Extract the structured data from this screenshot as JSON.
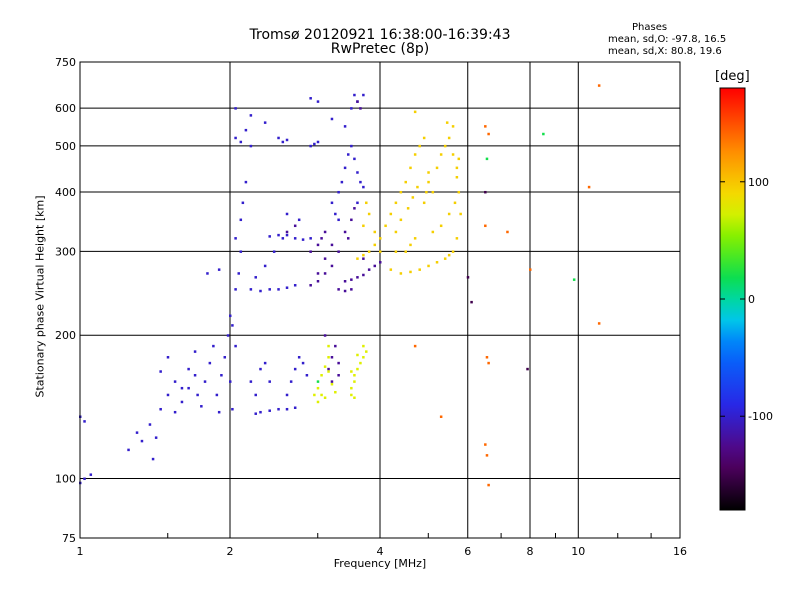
{
  "title": {
    "line1": "Tromsø 20120921 16:38:00-16:39:43",
    "line2": "RwPretec (8p)"
  },
  "stats": {
    "heading": "Phases",
    "o_line": "mean, sd,O: -97.8, 16.5",
    "x_line": "mean, sd,X:  80.8, 19.6"
  },
  "chart_data": {
    "type": "scatter",
    "title": "Tromsø 20120921 16:38:00-16:39:43",
    "subtitle": "RwPretec (8p)",
    "xlabel": "Frequency [MHz]",
    "ylabel": "Stationary phase Virtual Height [km]",
    "xscale": "log",
    "yscale": "log",
    "xlim": [
      1,
      16
    ],
    "ylim": [
      75,
      750
    ],
    "xticks": [
      1,
      2,
      4,
      6,
      8,
      10,
      16
    ],
    "yticks": [
      75,
      100,
      200,
      300,
      400,
      500,
      600,
      750
    ],
    "grid": true,
    "colorbar": {
      "label": "[deg]",
      "range": [
        -180,
        180
      ],
      "ticks": [
        -100,
        0,
        100
      ],
      "colormap": "rainbow (black-purple-blue-cyan-green-yellow-orange-red)"
    },
    "series": [
      {
        "phase_deg": -100,
        "points": [
          [
            1.0,
            98
          ],
          [
            1.02,
            100
          ],
          [
            1.05,
            102
          ],
          [
            1.0,
            135
          ],
          [
            1.02,
            132
          ],
          [
            1.25,
            115
          ],
          [
            1.3,
            125
          ],
          [
            1.33,
            120
          ],
          [
            1.38,
            130
          ],
          [
            1.4,
            110
          ],
          [
            1.42,
            122
          ],
          [
            1.45,
            140
          ],
          [
            1.5,
            150
          ],
          [
            1.45,
            168
          ],
          [
            1.5,
            180
          ],
          [
            1.55,
            160
          ],
          [
            1.6,
            145
          ],
          [
            1.55,
            138
          ],
          [
            1.6,
            155
          ],
          [
            1.65,
            170
          ],
          [
            1.7,
            185
          ],
          [
            1.72,
            150
          ],
          [
            1.75,
            142
          ],
          [
            1.78,
            160
          ],
          [
            1.82,
            175
          ],
          [
            1.85,
            190
          ],
          [
            1.88,
            150
          ],
          [
            1.9,
            138
          ],
          [
            1.92,
            165
          ],
          [
            1.95,
            180
          ],
          [
            1.98,
            200
          ],
          [
            2.0,
            220
          ],
          [
            2.0,
            160
          ],
          [
            2.02,
            140
          ],
          [
            2.05,
            190
          ],
          [
            2.02,
            210
          ],
          [
            2.05,
            250
          ],
          [
            2.08,
            270
          ],
          [
            2.1,
            300
          ],
          [
            2.05,
            320
          ],
          [
            2.1,
            350
          ],
          [
            2.12,
            380
          ],
          [
            2.15,
            420
          ],
          [
            2.05,
            520
          ],
          [
            2.1,
            510
          ],
          [
            2.15,
            540
          ],
          [
            2.2,
            500
          ],
          [
            2.25,
            137
          ],
          [
            2.3,
            138
          ],
          [
            2.4,
            139
          ],
          [
            2.5,
            140
          ],
          [
            2.6,
            140
          ],
          [
            2.7,
            141
          ],
          [
            2.2,
            250
          ],
          [
            2.3,
            248
          ],
          [
            2.4,
            250
          ],
          [
            2.5,
            250
          ],
          [
            2.6,
            252
          ],
          [
            2.7,
            255
          ],
          [
            2.25,
            265
          ],
          [
            2.35,
            280
          ],
          [
            2.45,
            300
          ],
          [
            2.55,
            320
          ],
          [
            2.4,
            323
          ],
          [
            2.5,
            325
          ],
          [
            2.6,
            325
          ],
          [
            2.7,
            320
          ],
          [
            2.8,
            318
          ],
          [
            2.9,
            320
          ],
          [
            2.5,
            520
          ],
          [
            2.55,
            510
          ],
          [
            2.6,
            515
          ],
          [
            2.9,
            500
          ],
          [
            2.95,
            505
          ],
          [
            3.0,
            510
          ],
          [
            2.6,
            150
          ],
          [
            2.65,
            160
          ],
          [
            2.7,
            170
          ],
          [
            2.75,
            180
          ],
          [
            2.8,
            175
          ],
          [
            2.85,
            165
          ],
          [
            2.3,
            170
          ],
          [
            2.35,
            175
          ],
          [
            2.4,
            160
          ],
          [
            1.8,
            270
          ],
          [
            1.9,
            275
          ],
          [
            2.05,
            600
          ],
          [
            2.2,
            580
          ],
          [
            2.35,
            560
          ],
          [
            2.6,
            360
          ],
          [
            2.75,
            350
          ],
          [
            2.2,
            160
          ],
          [
            2.25,
            150
          ],
          [
            1.65,
            155
          ],
          [
            1.7,
            165
          ],
          [
            3.3,
            400
          ],
          [
            3.35,
            420
          ],
          [
            3.4,
            450
          ],
          [
            3.45,
            480
          ],
          [
            3.5,
            500
          ],
          [
            3.55,
            470
          ],
          [
            3.6,
            440
          ],
          [
            3.65,
            420
          ],
          [
            3.7,
            410
          ],
          [
            3.5,
            600
          ],
          [
            3.55,
            640
          ],
          [
            3.6,
            620
          ],
          [
            3.7,
            640
          ],
          [
            3.4,
            550
          ],
          [
            3.2,
            380
          ],
          [
            3.25,
            360
          ],
          [
            3.3,
            350
          ],
          [
            3.6,
            380
          ],
          [
            3.0,
            620
          ],
          [
            2.9,
            630
          ],
          [
            3.2,
            570
          ]
        ]
      },
      {
        "phase_deg": -120,
        "points": [
          [
            2.9,
            255
          ],
          [
            3.0,
            260
          ],
          [
            3.1,
            270
          ],
          [
            3.2,
            280
          ],
          [
            3.3,
            300
          ],
          [
            3.1,
            290
          ],
          [
            3.2,
            310
          ],
          [
            3.4,
            260
          ],
          [
            3.5,
            262
          ],
          [
            3.6,
            265
          ],
          [
            3.7,
            268
          ],
          [
            3.8,
            275
          ],
          [
            3.9,
            280
          ],
          [
            4.0,
            285
          ],
          [
            3.3,
            250
          ],
          [
            3.4,
            248
          ],
          [
            3.5,
            250
          ],
          [
            2.9,
            300
          ],
          [
            3.0,
            310
          ],
          [
            3.05,
            320
          ],
          [
            3.1,
            330
          ],
          [
            3.0,
            270
          ],
          [
            3.15,
            170
          ],
          [
            3.2,
            180
          ],
          [
            3.25,
            190
          ],
          [
            3.3,
            175
          ],
          [
            3.1,
            200
          ],
          [
            3.2,
            160
          ],
          [
            3.3,
            165
          ],
          [
            3.6,
            620
          ],
          [
            3.65,
            600
          ],
          [
            3.4,
            330
          ],
          [
            3.45,
            320
          ],
          [
            3.5,
            350
          ],
          [
            3.55,
            370
          ],
          [
            3.7,
            290
          ],
          [
            2.6,
            330
          ],
          [
            2.7,
            340
          ]
        ]
      },
      {
        "phase_deg": 95,
        "points": [
          [
            3.6,
            290
          ],
          [
            3.7,
            295
          ],
          [
            3.8,
            300
          ],
          [
            3.9,
            310
          ],
          [
            4.0,
            320
          ],
          [
            4.1,
            340
          ],
          [
            4.2,
            360
          ],
          [
            4.3,
            380
          ],
          [
            4.4,
            400
          ],
          [
            4.3,
            300
          ],
          [
            4.5,
            420
          ],
          [
            4.6,
            450
          ],
          [
            4.7,
            480
          ],
          [
            4.8,
            500
          ],
          [
            4.9,
            520
          ],
          [
            5.0,
            420
          ],
          [
            5.1,
            400
          ],
          [
            5.2,
            450
          ],
          [
            5.3,
            480
          ],
          [
            5.4,
            500
          ],
          [
            5.5,
            520
          ],
          [
            5.6,
            480
          ],
          [
            5.7,
            430
          ],
          [
            5.75,
            400
          ],
          [
            5.8,
            360
          ],
          [
            5.7,
            320
          ],
          [
            5.6,
            300
          ],
          [
            5.5,
            295
          ],
          [
            5.4,
            290
          ],
          [
            5.2,
            285
          ],
          [
            5.0,
            280
          ],
          [
            4.8,
            275
          ],
          [
            4.6,
            272
          ],
          [
            4.4,
            270
          ],
          [
            4.2,
            275
          ],
          [
            4.0,
            300
          ],
          [
            3.9,
            330
          ],
          [
            3.8,
            360
          ],
          [
            3.75,
            380
          ],
          [
            3.7,
            340
          ],
          [
            4.5,
            300
          ],
          [
            4.6,
            310
          ],
          [
            4.7,
            320
          ],
          [
            5.1,
            330
          ],
          [
            5.3,
            340
          ],
          [
            5.5,
            360
          ],
          [
            5.65,
            380
          ],
          [
            5.7,
            450
          ],
          [
            5.75,
            470
          ],
          [
            4.9,
            380
          ],
          [
            4.95,
            400
          ],
          [
            5.0,
            440
          ],
          [
            4.3,
            330
          ],
          [
            4.4,
            350
          ],
          [
            4.55,
            370
          ],
          [
            4.65,
            390
          ],
          [
            4.75,
            410
          ],
          [
            5.45,
            560
          ],
          [
            5.6,
            550
          ],
          [
            4.7,
            590
          ]
        ]
      },
      {
        "phase_deg": 75,
        "points": [
          [
            2.95,
            150
          ],
          [
            3.0,
            155
          ],
          [
            3.05,
            165
          ],
          [
            3.1,
            172
          ],
          [
            3.15,
            168
          ],
          [
            3.2,
            158
          ],
          [
            3.25,
            152
          ],
          [
            3.1,
            148
          ],
          [
            3.0,
            145
          ],
          [
            3.05,
            150
          ],
          [
            3.15,
            180
          ],
          [
            3.5,
            155
          ],
          [
            3.55,
            160
          ],
          [
            3.6,
            170
          ],
          [
            3.65,
            175
          ],
          [
            3.6,
            182
          ],
          [
            3.55,
            165
          ],
          [
            3.5,
            168
          ],
          [
            3.7,
            190
          ],
          [
            3.75,
            185
          ],
          [
            3.5,
            150
          ],
          [
            3.55,
            148
          ],
          [
            3.15,
            190
          ],
          [
            3.7,
            180
          ]
        ]
      },
      {
        "phase_deg": 140,
        "points": [
          [
            6.5,
            550
          ],
          [
            6.6,
            530
          ],
          [
            6.5,
            340
          ],
          [
            6.55,
            180
          ],
          [
            6.6,
            175
          ],
          [
            6.5,
            118
          ],
          [
            6.55,
            112
          ],
          [
            6.6,
            97
          ],
          [
            10.5,
            410
          ],
          [
            11.0,
            670
          ],
          [
            11.0,
            212
          ],
          [
            8.0,
            275
          ],
          [
            7.2,
            330
          ],
          [
            4.7,
            190
          ],
          [
            5.3,
            135
          ]
        ]
      },
      {
        "phase_deg": 20,
        "points": [
          [
            6.55,
            470
          ],
          [
            8.5,
            530
          ],
          [
            9.8,
            262
          ],
          [
            3.0,
            160
          ]
        ]
      },
      {
        "phase_deg": -150,
        "points": [
          [
            6.0,
            265
          ],
          [
            6.1,
            235
          ],
          [
            6.5,
            400
          ],
          [
            7.9,
            170
          ]
        ]
      }
    ]
  },
  "layout": {
    "plot_left": 80,
    "plot_right": 680,
    "plot_top": 62,
    "plot_bottom": 538,
    "cb_left": 720,
    "cb_right": 745,
    "cb_top": 88,
    "cb_bottom": 510
  }
}
